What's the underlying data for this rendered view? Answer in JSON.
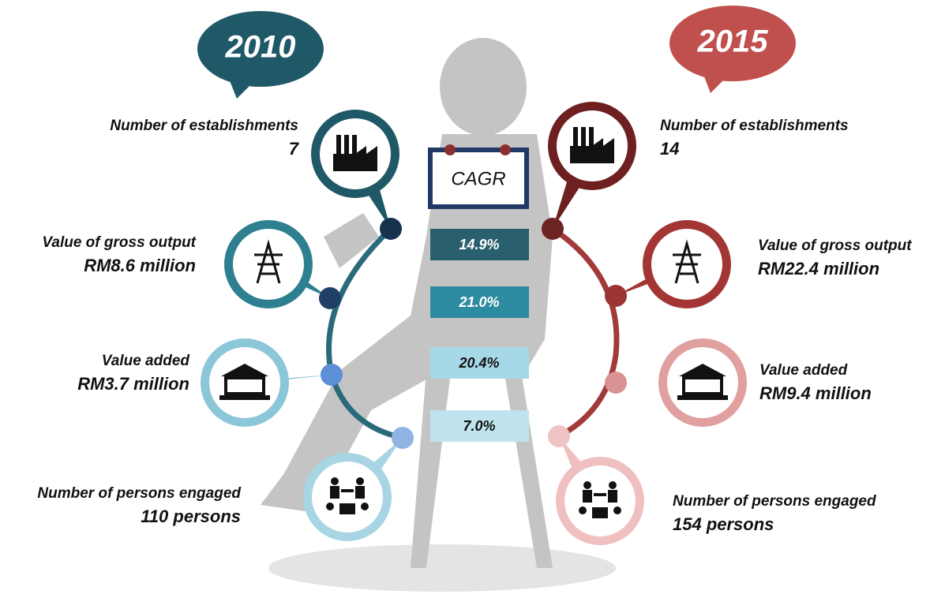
{
  "left": {
    "year": "2010",
    "items": [
      {
        "label": "Number of establishments",
        "value": "7"
      },
      {
        "label": "Value of gross output",
        "value": "RM8.6 million"
      },
      {
        "label": "Value added",
        "value": "RM3.7 million"
      },
      {
        "label": "Number of persons engaged",
        "value": "110 persons"
      }
    ]
  },
  "right": {
    "year": "2015",
    "items": [
      {
        "label": "Number of establishments",
        "value": "14"
      },
      {
        "label": "Value of gross output",
        "value": "RM22.4 million"
      },
      {
        "label": "Value added",
        "value": "RM9.4 million"
      },
      {
        "label": "Number of persons engaged",
        "value": "154 persons"
      }
    ]
  },
  "center": {
    "title": "CAGR",
    "rates": [
      "14.9%",
      "21.0%",
      "20.4%",
      "7.0%"
    ]
  }
}
